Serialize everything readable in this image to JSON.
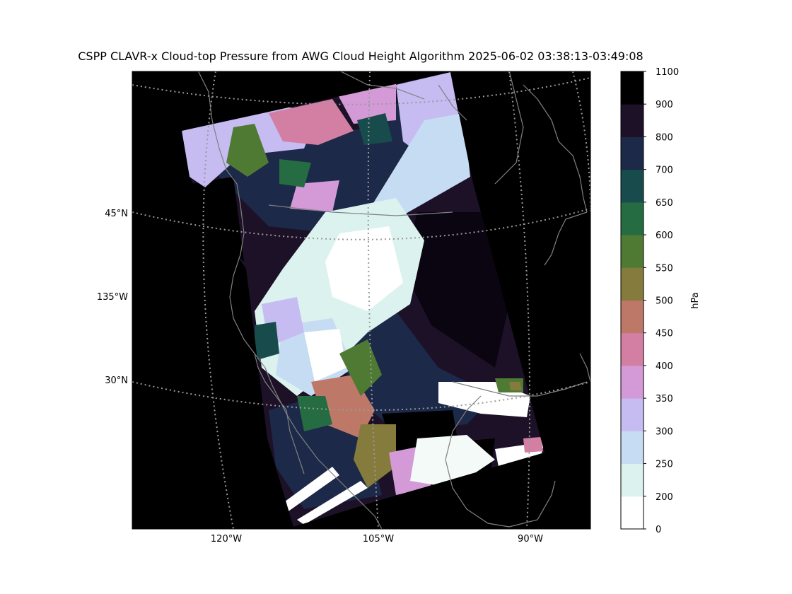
{
  "figure": {
    "title": "CSPP CLAVR-x Cloud-top Pressure from AWG Cloud Height Algorithm 2025-06-02 03:38:13-03:49:08"
  },
  "map": {
    "background_color": "#000000",
    "coastline_color": "#808080",
    "gridline_color": "#9a9a9a",
    "lat_labels": [
      "45°N",
      "135°W",
      "30°N"
    ],
    "lon_labels": [
      "120°W",
      "105°W",
      "90°W"
    ]
  },
  "colorbar": {
    "label": "hPa",
    "ticks": [
      0,
      200,
      250,
      300,
      350,
      400,
      450,
      500,
      550,
      600,
      650,
      700,
      800,
      900,
      1100
    ],
    "colors": [
      "#ffffff",
      "#dcf2ee",
      "#c6dcf3",
      "#c6bcf1",
      "#d49ad8",
      "#d37fa4",
      "#bd7868",
      "#857b3c",
      "#4f7a33",
      "#266c42",
      "#184c4c",
      "#1c2948",
      "#1d1128",
      "#000000"
    ]
  },
  "chart_data": {
    "type": "heatmap",
    "title": "CSPP CLAVR-x Cloud-top Pressure from AWG Cloud Height Algorithm 2025-06-02 03:38:13-03:49:08",
    "variable": "Cloud-top Pressure",
    "units": "hPa",
    "color_scale": {
      "boundaries": [
        0,
        200,
        250,
        300,
        350,
        400,
        450,
        500,
        550,
        600,
        650,
        700,
        800,
        900,
        1100
      ],
      "range": [
        0,
        1100
      ]
    },
    "map_extent": {
      "lat_labels": [
        "45°N",
        "135°W",
        "30°N"
      ],
      "lon_labels": [
        "120°W",
        "105°W",
        "90°W"
      ]
    },
    "grid": true
  }
}
